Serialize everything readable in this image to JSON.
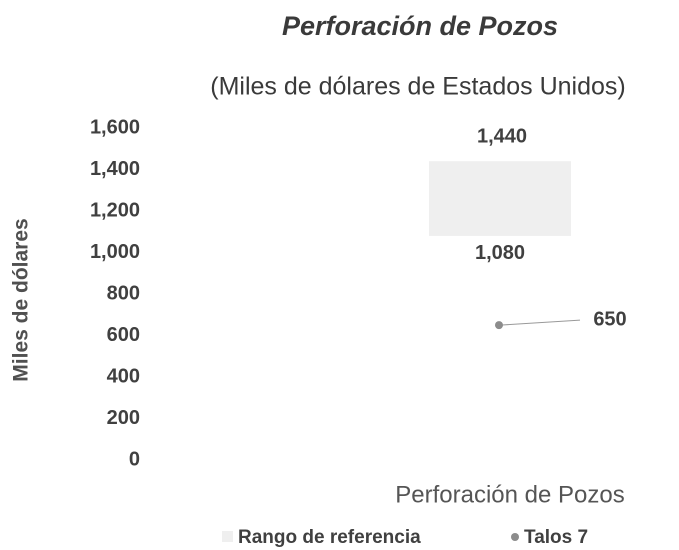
{
  "chart_data": {
    "type": "range_point",
    "title": "Perforación de Pozos",
    "subtitle": "(Miles de dólares de Estados Unidos)",
    "y_label": "Miles de dólares",
    "categories": [
      "Perforación de Pozos"
    ],
    "series": [
      {
        "name": "Rango de referencia",
        "color": "#efefef",
        "low": [
          1080
        ],
        "high": [
          1440
        ],
        "low_labels": [
          "1,080"
        ],
        "high_labels": [
          "1,440"
        ]
      },
      {
        "name": "Talos 7",
        "color": "#8c8c8c",
        "values": [
          650
        ]
      }
    ],
    "ylim": [
      0,
      1600
    ],
    "yticks": [
      0,
      200,
      400,
      600,
      800,
      {
        "value": 1000,
        "label": "1,000"
      },
      {
        "value": 1200,
        "label": "1,200"
      },
      {
        "value": 1400,
        "label": "1,400"
      },
      {
        "value": 1600,
        "label": "1,600"
      }
    ],
    "grid": false
  }
}
